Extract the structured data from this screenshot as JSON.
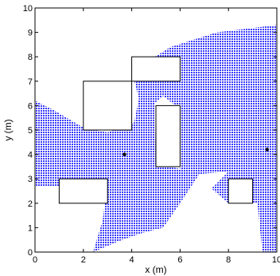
{
  "chart_data": {
    "type": "scatter",
    "title": "",
    "xlabel": "x (m)",
    "ylabel": "y (m)",
    "xlim": [
      0,
      10
    ],
    "ylim": [
      0,
      10
    ],
    "xticks": [
      0,
      2,
      4,
      6,
      8,
      10
    ],
    "yticks": [
      0,
      1,
      2,
      3,
      4,
      5,
      6,
      7,
      8,
      9,
      10
    ],
    "xtick_labels": [
      "0",
      "2",
      "4",
      "6",
      "8",
      "10"
    ],
    "ytick_labels": [
      "0",
      "1",
      "2",
      "3",
      "4",
      "5",
      "6",
      "7",
      "8",
      "9",
      "10"
    ],
    "grid": false,
    "region_color": "#3b3bff",
    "region_fill": "dotted",
    "region_polygon": [
      [
        0,
        6.2
      ],
      [
        0.8,
        5.8
      ],
      [
        2,
        5.1
      ],
      [
        3,
        4.9
      ],
      [
        3.5,
        5.1
      ],
      [
        4.1,
        5.3
      ],
      [
        4.3,
        6.3
      ],
      [
        4,
        7.4
      ],
      [
        5.6,
        8.4
      ],
      [
        7.5,
        9.0
      ],
      [
        10,
        9.3
      ],
      [
        10,
        0
      ],
      [
        9.4,
        0
      ],
      [
        9.2,
        2.0
      ],
      [
        8,
        2.0
      ],
      [
        7.3,
        2.6
      ],
      [
        8,
        3.3
      ],
      [
        6.8,
        3.2
      ],
      [
        6.0,
        2.0
      ],
      [
        5.3,
        1.0
      ],
      [
        4.5,
        0.8
      ],
      [
        3.6,
        0.5
      ],
      [
        2.4,
        0
      ],
      [
        2.8,
        1.3
      ],
      [
        2.9,
        2.1
      ],
      [
        2.4,
        2.5
      ],
      [
        1.4,
        2.7
      ],
      [
        0,
        2.7
      ]
    ],
    "region_holes": [
      [
        [
          4.95,
          6.1
        ],
        [
          5.3,
          6.4
        ],
        [
          5.75,
          6.05
        ],
        [
          6.0,
          5.3
        ],
        [
          6.0,
          3.4
        ],
        [
          5.6,
          3.5
        ],
        [
          5.0,
          3.6
        ]
      ]
    ],
    "obstacles": [
      {
        "x": [
          4,
          6
        ],
        "y": [
          7,
          8
        ]
      },
      {
        "x": [
          2,
          4
        ],
        "y": [
          5,
          7
        ]
      },
      {
        "x": [
          5,
          6
        ],
        "y": [
          3.5,
          6
        ]
      },
      {
        "x": [
          1,
          3
        ],
        "y": [
          2,
          3
        ]
      },
      {
        "x": [
          8,
          9
        ],
        "y": [
          2,
          3
        ]
      }
    ],
    "points": [
      {
        "x": 3.7,
        "y": 4.0
      },
      {
        "x": 9.6,
        "y": 4.2
      }
    ]
  }
}
